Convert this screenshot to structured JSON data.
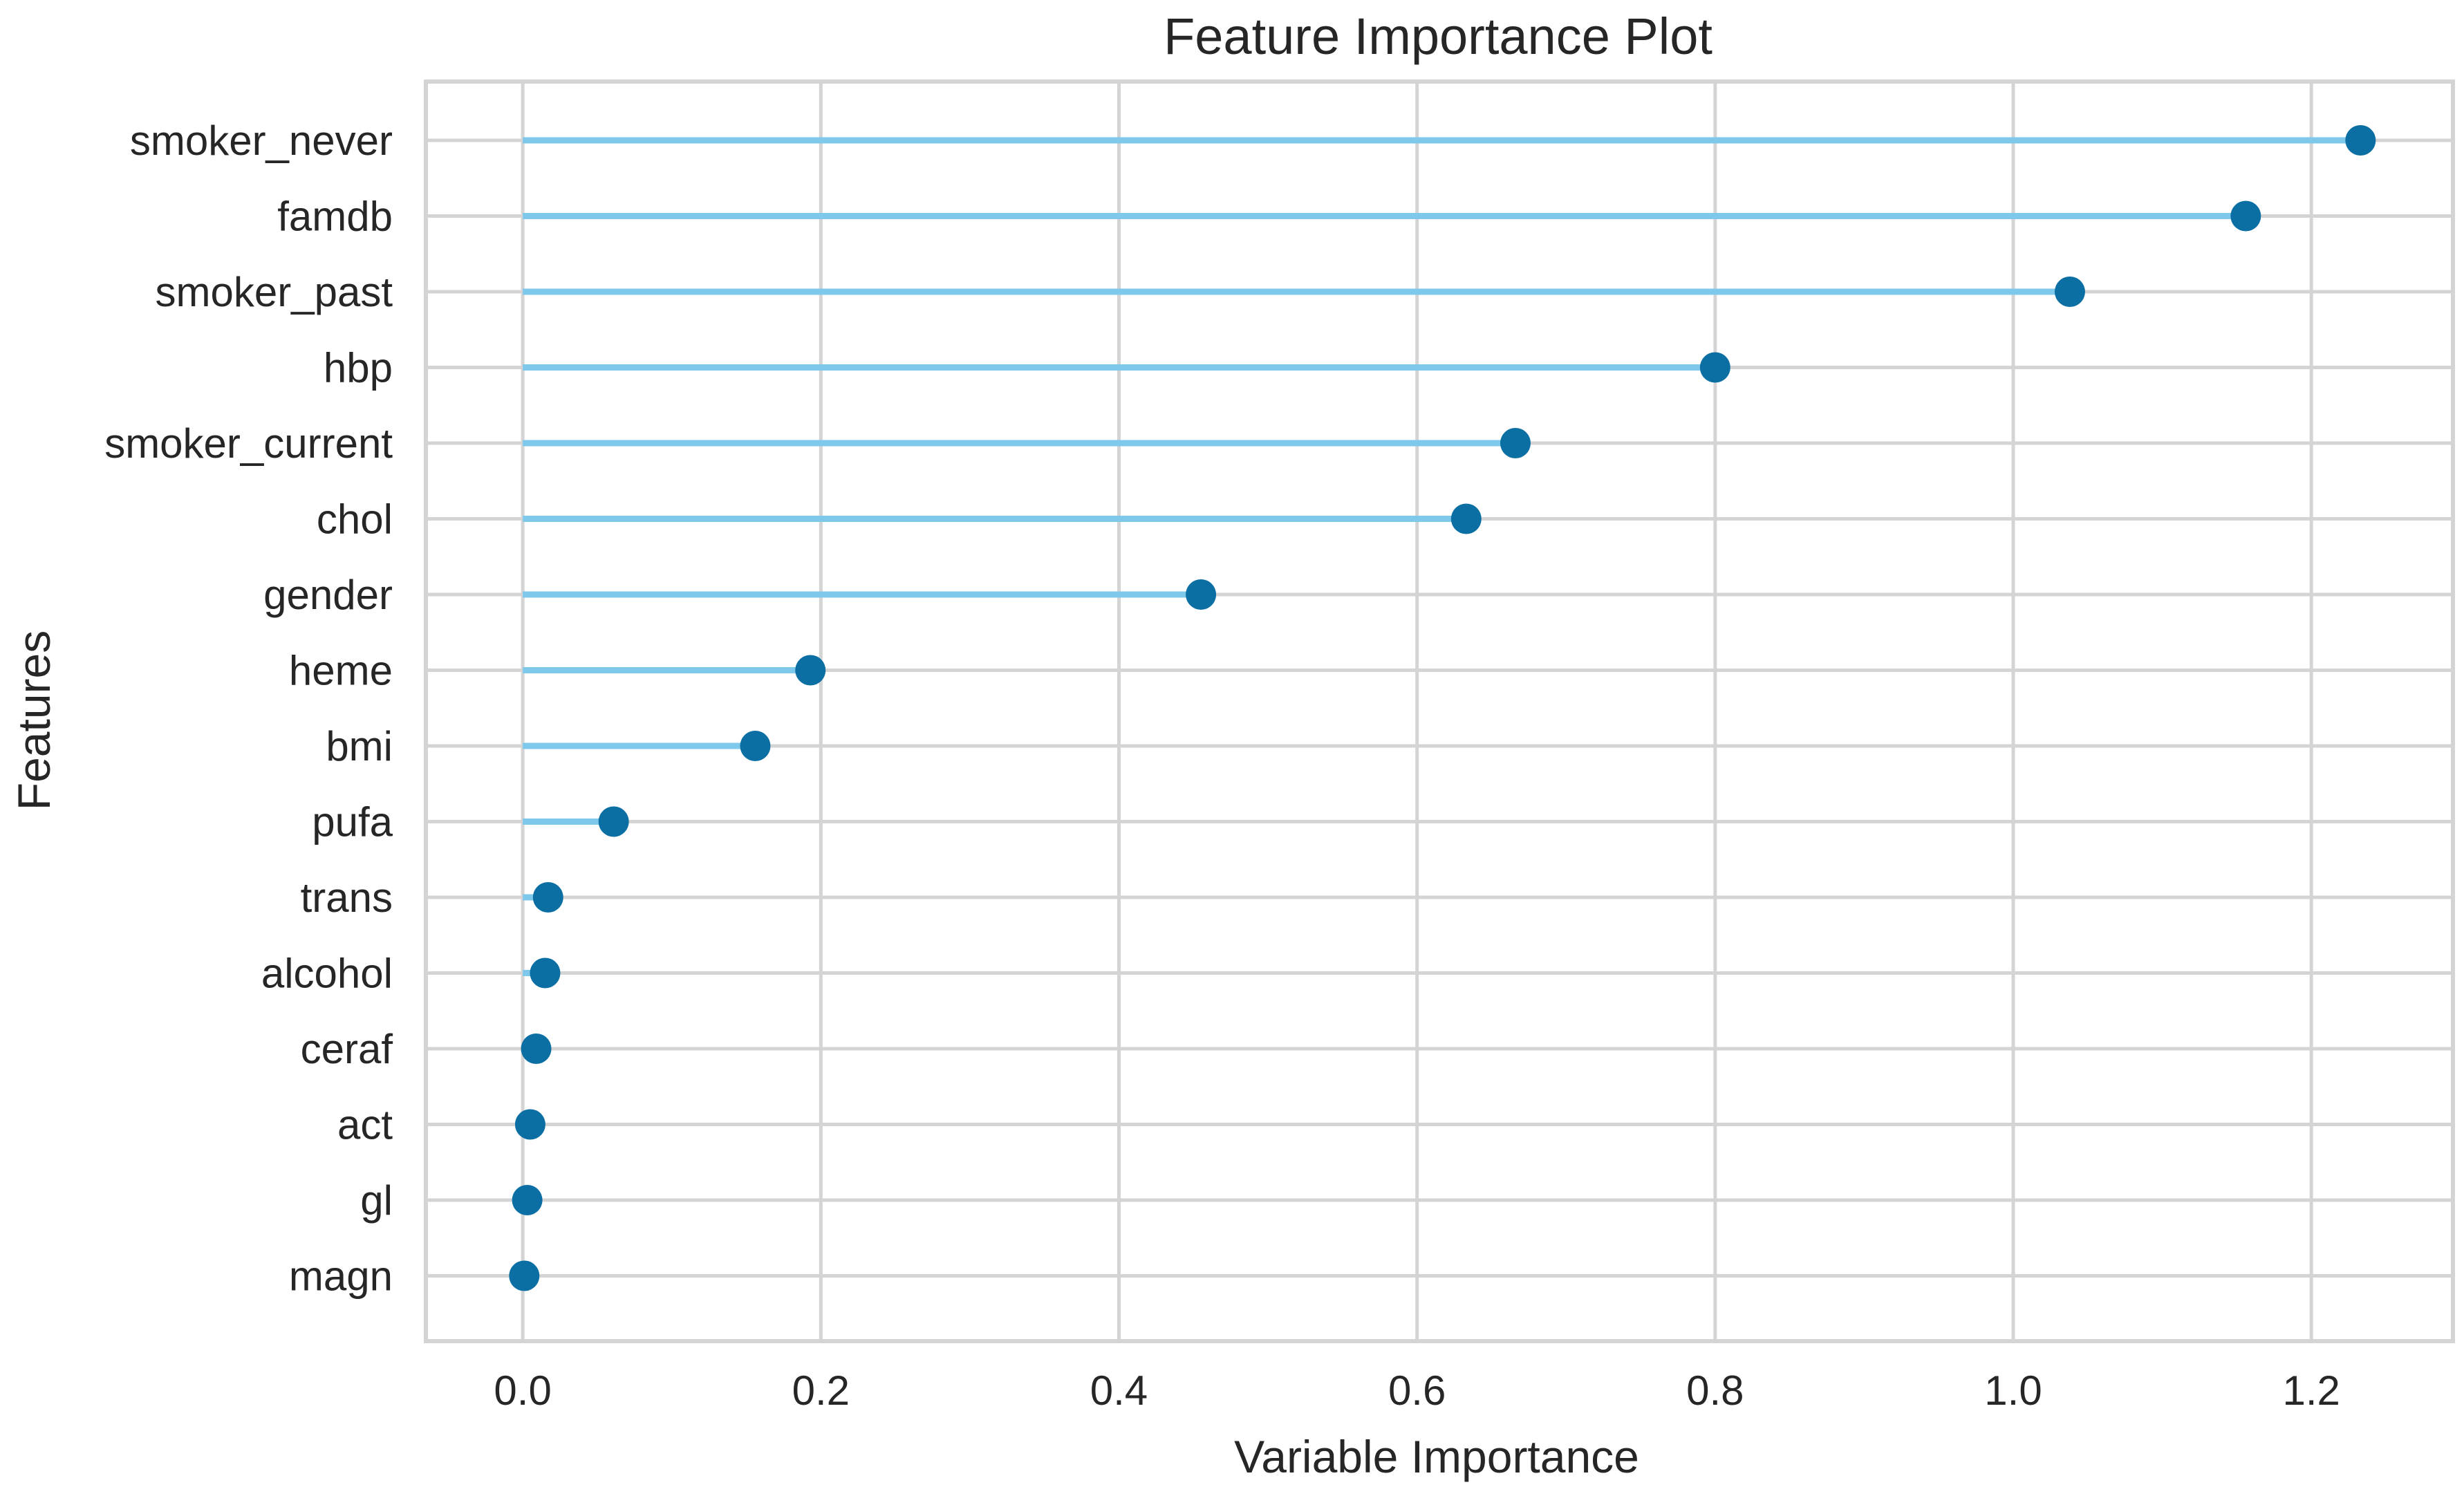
{
  "chart_data": {
    "type": "scatter",
    "style": "lollipop",
    "title": "Feature Importance Plot",
    "xlabel": "Variable Importance",
    "ylabel": "Features",
    "xlim": [
      -0.065,
      1.295
    ],
    "xticks": [
      0.0,
      0.2,
      0.4,
      0.6,
      0.8,
      1.0,
      1.2
    ],
    "xtick_labels": [
      "0.0",
      "0.2",
      "0.4",
      "0.6",
      "0.8",
      "1.0",
      "1.2"
    ],
    "grid": true,
    "categories": [
      "smoker_never",
      "famdb",
      "smoker_past",
      "hbp",
      "smoker_current",
      "chol",
      "gender",
      "heme",
      "bmi",
      "pufa",
      "trans",
      "alcohol",
      "ceraf",
      "act",
      "gl",
      "magn"
    ],
    "values": [
      1.233,
      1.156,
      1.038,
      0.8,
      0.666,
      0.633,
      0.455,
      0.193,
      0.156,
      0.061,
      0.017,
      0.015,
      0.009,
      0.005,
      0.003,
      0.001
    ],
    "colors": {
      "stem": "#7EC8EC",
      "marker": "#0B6FA4",
      "grid": "#D4D4D4",
      "frame": "#D4D4D4",
      "text": "#262626",
      "background": "#FFFFFF"
    }
  }
}
